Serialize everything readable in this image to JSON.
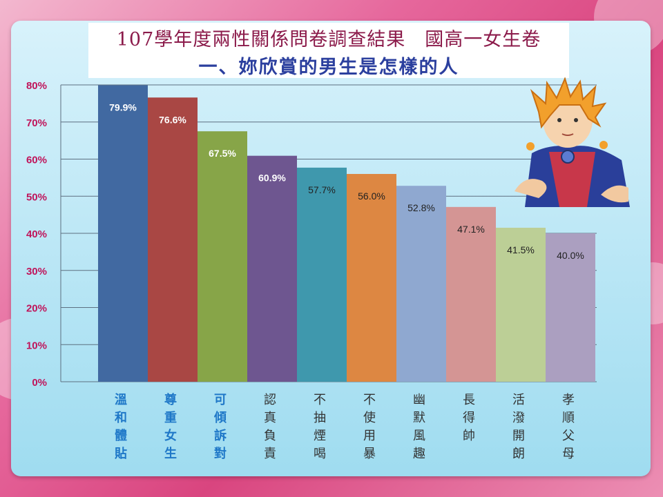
{
  "title_line1": "107學年度兩性關係問卷調查結果　國高一女生卷",
  "title_line2": "一、妳欣賞的男生是怎樣的人",
  "chart_data": {
    "type": "bar",
    "categories": [
      "溫和體貼",
      "尊重女生",
      "可傾訴對",
      "認真負責",
      "不抽煙喝",
      "不使用暴",
      "幽默風趣",
      "長得帥",
      "活潑開朗",
      "孝順父母"
    ],
    "values": [
      79.9,
      76.6,
      67.5,
      60.9,
      57.7,
      56.0,
      52.8,
      47.1,
      41.5,
      40.0
    ],
    "data_labels": [
      "79.9%",
      "76.6%",
      "67.5%",
      "60.9%",
      "57.7%",
      "56.0%",
      "52.8%",
      "47.1%",
      "41.5%",
      "40.0%"
    ],
    "y_ticks": [
      "0%",
      "10%",
      "20%",
      "30%",
      "40%",
      "50%",
      "60%",
      "70%",
      "80%"
    ],
    "ylim": [
      0,
      80
    ],
    "grid": true,
    "bar_colors": [
      "#4169a1",
      "#a94744",
      "#87a548",
      "#6e5690",
      "#3f98ad",
      "#dd8742",
      "#8fa8d0",
      "#d49594",
      "#bccf96",
      "#ab9fc0"
    ],
    "label_colors": [
      "#ffffff",
      "#ffffff",
      "#ffffff",
      "#ffffff",
      "#222222",
      "#222222",
      "#222222",
      "#222222",
      "#222222",
      "#222222"
    ],
    "category_colors": [
      "#1f78c8",
      "#1f78c8",
      "#1f78c8",
      "#333333",
      "#333333",
      "#333333",
      "#333333",
      "#333333",
      "#333333",
      "#333333"
    ],
    "emphasized_categories": 3
  }
}
